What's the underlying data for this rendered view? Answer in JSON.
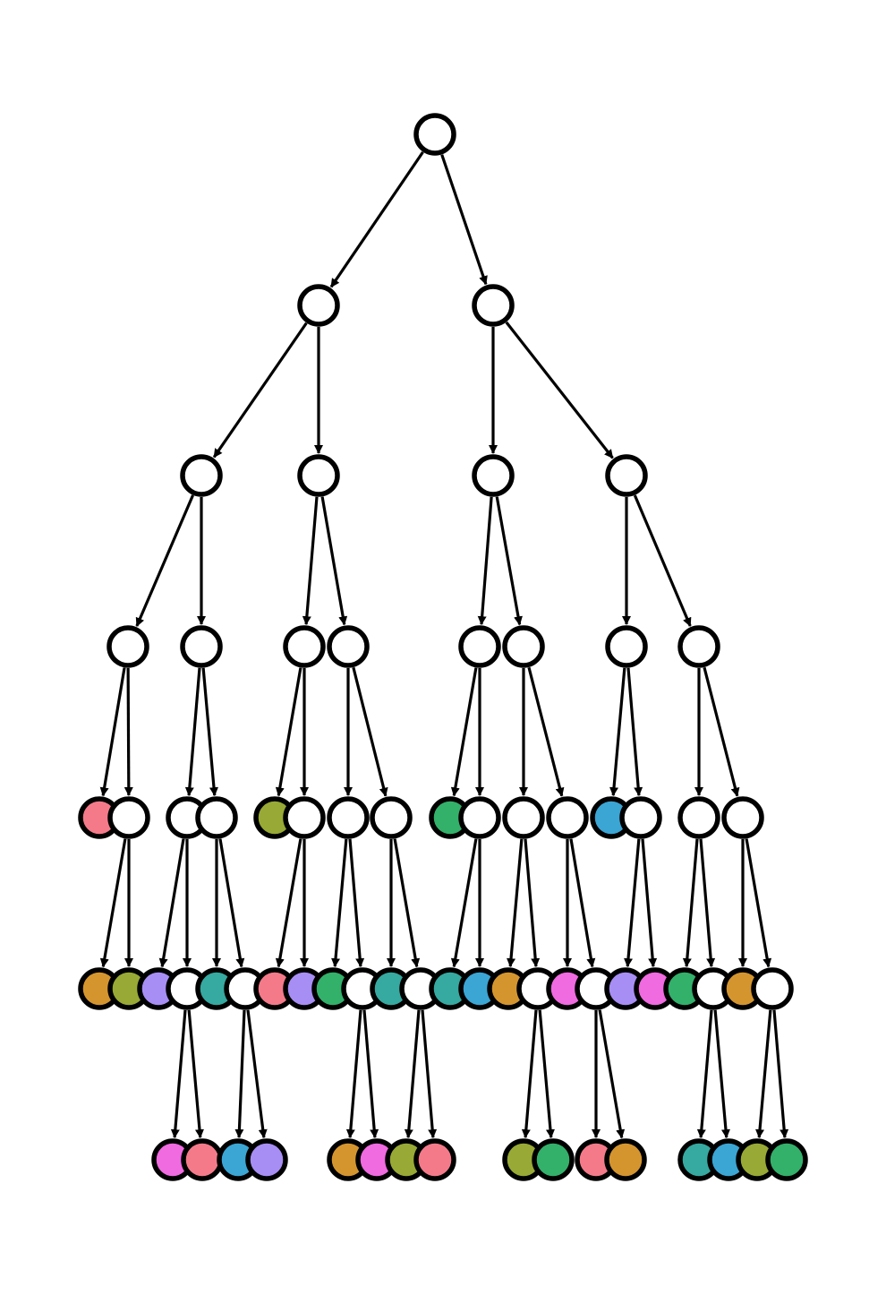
{
  "diagram": {
    "type": "tree",
    "node_default_color": "#ffffff",
    "root": {
      "id": "root",
      "children": [
        {
          "id": "L",
          "children": [
            {
              "id": "LL",
              "children": [
                {
                  "id": "LLL",
                  "children": [
                    {
                      "id": "LLL-leaf",
                      "color": "#f47a8a"
                    },
                    {
                      "id": "LLL-b",
                      "children": [
                        {
                          "id": "LLL-b-1",
                          "color": "#d4952f"
                        },
                        {
                          "id": "LLL-b-2",
                          "color": "#98a935"
                        }
                      ]
                    }
                  ]
                },
                {
                  "id": "LLR",
                  "children": [
                    {
                      "id": "LLR-a",
                      "children": [
                        {
                          "id": "LLR-a-1",
                          "color": "#a78ef5"
                        },
                        {
                          "id": "LLR-a-2",
                          "children": [
                            {
                              "id": "LLR-a-2-1",
                              "color": "#f06ae0"
                            },
                            {
                              "id": "LLR-a-2-2",
                              "color": "#f47a8a"
                            }
                          ]
                        }
                      ]
                    },
                    {
                      "id": "LLR-b",
                      "children": [
                        {
                          "id": "LLR-b-1",
                          "color": "#36a9a0"
                        },
                        {
                          "id": "LLR-b-2",
                          "children": [
                            {
                              "id": "LLR-b-2-1",
                              "color": "#3ba5d4"
                            },
                            {
                              "id": "LLR-b-2-2",
                              "color": "#a78ef5"
                            }
                          ]
                        }
                      ]
                    }
                  ]
                }
              ]
            },
            {
              "id": "LR",
              "children": [
                {
                  "id": "LRL",
                  "children": [
                    {
                      "id": "LRL-leaf",
                      "color": "#98a935"
                    },
                    {
                      "id": "LRL-b",
                      "children": [
                        {
                          "id": "LRL-b-1",
                          "color": "#f47a8a"
                        },
                        {
                          "id": "LRL-b-2",
                          "color": "#a78ef5"
                        }
                      ]
                    }
                  ]
                },
                {
                  "id": "LRR",
                  "children": [
                    {
                      "id": "LRR-a",
                      "children": [
                        {
                          "id": "LRR-a-1",
                          "color": "#33b06a"
                        },
                        {
                          "id": "LRR-a-2",
                          "children": [
                            {
                              "id": "LRR-a-2-1",
                              "color": "#d4952f"
                            },
                            {
                              "id": "LRR-a-2-2",
                              "color": "#f06ae0"
                            }
                          ]
                        }
                      ]
                    },
                    {
                      "id": "LRR-b",
                      "children": [
                        {
                          "id": "LRR-b-1",
                          "color": "#36a9a0"
                        },
                        {
                          "id": "LRR-b-2",
                          "children": [
                            {
                              "id": "LRR-b-2-1",
                              "color": "#98a935"
                            },
                            {
                              "id": "LRR-b-2-2",
                              "color": "#f47a8a"
                            }
                          ]
                        }
                      ]
                    }
                  ]
                }
              ]
            }
          ]
        },
        {
          "id": "R",
          "children": [
            {
              "id": "RL",
              "children": [
                {
                  "id": "RLL",
                  "children": [
                    {
                      "id": "RLL-leaf",
                      "color": "#33b06a"
                    },
                    {
                      "id": "RLL-b",
                      "children": [
                        {
                          "id": "RLL-b-1",
                          "color": "#36a9a0"
                        },
                        {
                          "id": "RLL-b-2",
                          "color": "#3ba5d4"
                        }
                      ]
                    }
                  ]
                },
                {
                  "id": "RLR",
                  "children": [
                    {
                      "id": "RLR-a",
                      "children": [
                        {
                          "id": "RLR-a-1",
                          "color": "#d4952f"
                        },
                        {
                          "id": "RLR-a-2",
                          "children": [
                            {
                              "id": "RLR-a-2-1",
                              "color": "#98a935"
                            },
                            {
                              "id": "RLR-a-2-2",
                              "color": "#33b06a"
                            }
                          ]
                        }
                      ]
                    },
                    {
                      "id": "RLR-b",
                      "children": [
                        {
                          "id": "RLR-b-1",
                          "color": "#f06ae0"
                        },
                        {
                          "id": "RLR-b-2",
                          "children": [
                            {
                              "id": "RLR-b-2-1",
                              "color": "#f47a8a"
                            },
                            {
                              "id": "RLR-b-2-2",
                              "color": "#d4952f"
                            }
                          ]
                        }
                      ]
                    }
                  ]
                }
              ]
            },
            {
              "id": "RR",
              "children": [
                {
                  "id": "RRL",
                  "children": [
                    {
                      "id": "RRL-leaf",
                      "color": "#3ba5d4"
                    },
                    {
                      "id": "RRL-b",
                      "children": [
                        {
                          "id": "RRL-b-1",
                          "color": "#a78ef5"
                        },
                        {
                          "id": "RRL-b-2",
                          "color": "#f06ae0"
                        }
                      ]
                    }
                  ]
                },
                {
                  "id": "RRR",
                  "children": [
                    {
                      "id": "RRR-a",
                      "children": [
                        {
                          "id": "RRR-a-1",
                          "color": "#33b06a"
                        },
                        {
                          "id": "RRR-a-2",
                          "children": [
                            {
                              "id": "RRR-a-2-1",
                              "color": "#36a9a0"
                            },
                            {
                              "id": "RRR-a-2-2",
                              "color": "#3ba5d4"
                            }
                          ]
                        }
                      ]
                    },
                    {
                      "id": "RRR-b",
                      "children": [
                        {
                          "id": "RRR-b-1",
                          "color": "#d4952f"
                        },
                        {
                          "id": "RRR-b-2",
                          "children": [
                            {
                              "id": "RRR-b-2-1",
                              "color": "#98a935"
                            },
                            {
                              "id": "RRR-b-2-2",
                              "color": "#33b06a"
                            }
                          ]
                        }
                      ]
                    }
                  ]
                }
              ]
            }
          ]
        }
      ]
    }
  }
}
